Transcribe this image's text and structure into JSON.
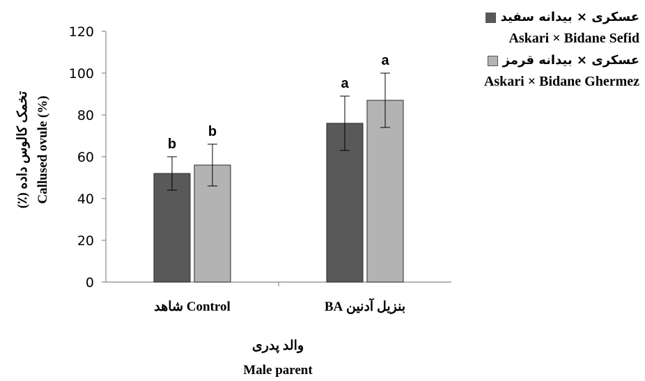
{
  "chart_data": {
    "type": "bar",
    "categories": [
      "Control شاهد",
      "بنزیل آدنین BA"
    ],
    "series": [
      {
        "name_fa": "عسکری × بیدانه سفید",
        "name": "Askari × Bidane Sefid",
        "color": "#595959",
        "values": [
          52,
          76
        ],
        "errors": [
          8,
          13
        ],
        "letters": [
          "b",
          "a"
        ]
      },
      {
        "name_fa": "عسکری × بیدانه قرمز",
        "name": "Askari × Bidane Ghermez",
        "color": "#b3b3b3",
        "values": [
          56,
          87
        ],
        "errors": [
          10,
          13
        ],
        "letters": [
          "b",
          "a"
        ]
      }
    ],
    "ylabel_fa": "تخمک کالوس داده (٪)",
    "ylabel": "Callused ovule (%)",
    "xlabel_fa": "والد پدری",
    "xlabel": "Male parent",
    "ylim": [
      0,
      120
    ],
    "yticks": [
      0,
      20,
      40,
      60,
      80,
      100,
      120
    ],
    "grid": false,
    "legend_position": "right"
  }
}
